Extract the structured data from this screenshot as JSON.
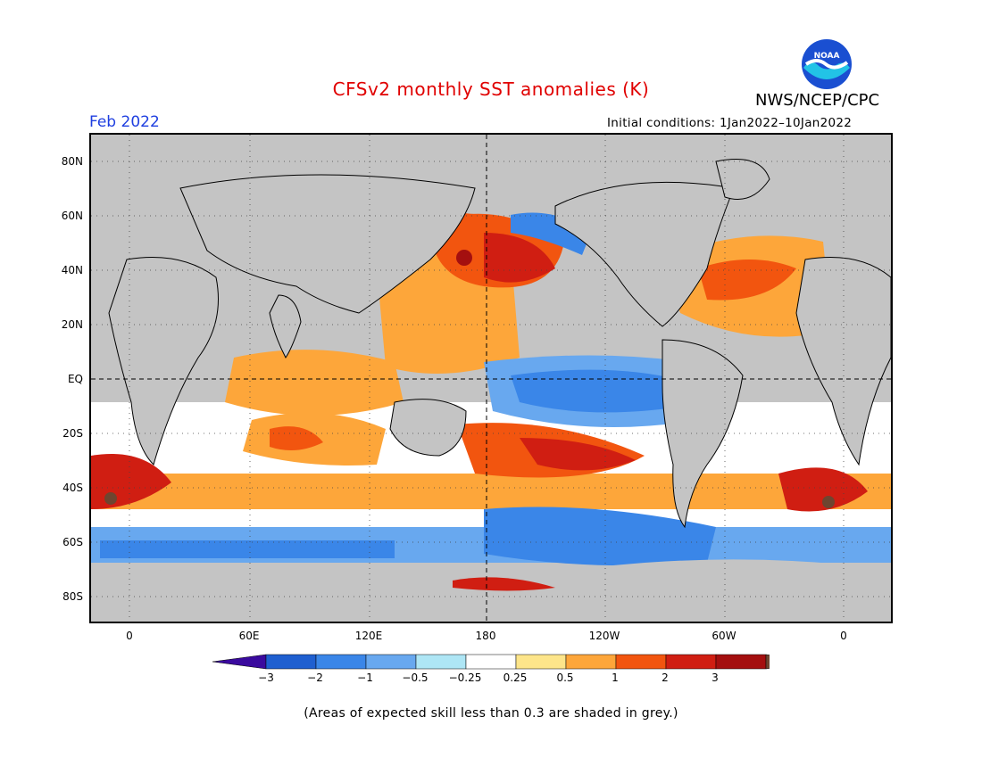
{
  "title": "CFSv2 monthly SST anomalies (K)",
  "agency": "NWS/NCEP/CPC",
  "logo_text": "NOAA",
  "month": "Feb 2022",
  "initial_conditions": "Initial conditions: 1Jan2022–10Jan2022",
  "lat_labels": [
    "80N",
    "60N",
    "40N",
    "20N",
    "EQ",
    "20S",
    "40S",
    "60S",
    "80S"
  ],
  "lon_labels": [
    "0",
    "60E",
    "120E",
    "180",
    "120W",
    "60W",
    "0"
  ],
  "colorbar": {
    "labels": [
      "−3",
      "−2",
      "−1",
      "−0.5",
      "−0.25",
      "0.25",
      "0.5",
      "1",
      "2",
      "3"
    ],
    "colors": [
      "#3a0a9e",
      "#1f5fd0",
      "#3a86e8",
      "#68a8ef",
      "#aee6f5",
      "#ffffff",
      "#fde58a",
      "#fda63a",
      "#f2550f",
      "#d01e12",
      "#a40f0f",
      "#6e4530"
    ]
  },
  "footnote": "(Areas of expected skill less than 0.3 are shaded in grey.)"
}
